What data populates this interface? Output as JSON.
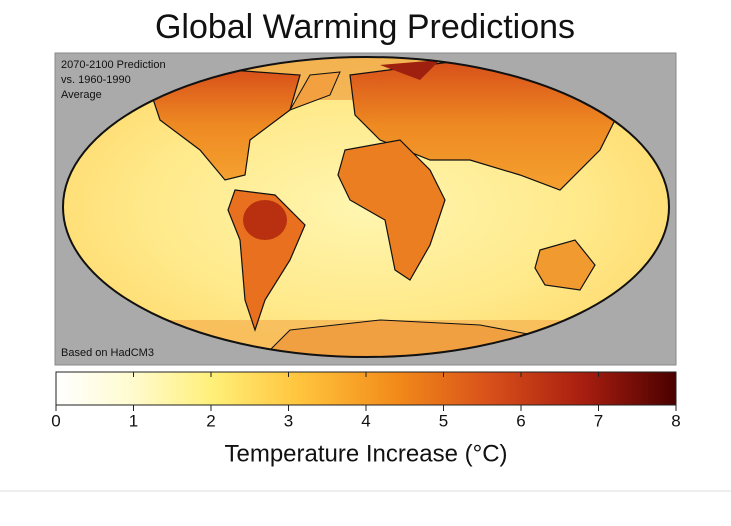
{
  "title": "Global Warming Predictions",
  "map": {
    "annotation_top": [
      "2070-2100 Prediction",
      "vs. 1960-1990",
      "Average"
    ],
    "annotation_bottom": "Based on HadCM3"
  },
  "colorbar": {
    "range": [
      0,
      8
    ],
    "ticks": [
      0,
      1,
      2,
      3,
      4,
      5,
      6,
      7,
      8
    ],
    "label": "Temperature Increase (°C)"
  }
}
